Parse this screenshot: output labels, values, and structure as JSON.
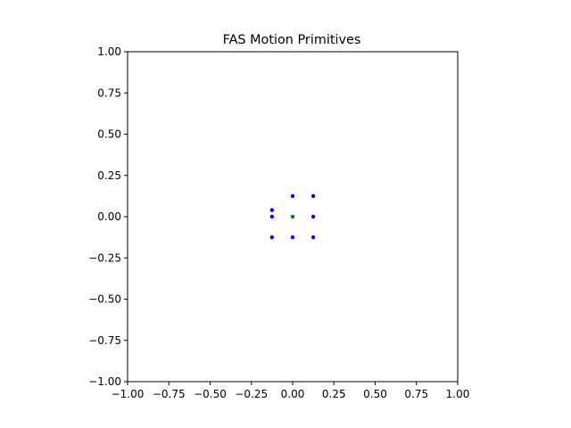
{
  "chart_data": {
    "type": "scatter",
    "title": "FAS Motion Primitives",
    "xlabel": "",
    "ylabel": "",
    "xlim": [
      -1.0,
      1.0
    ],
    "ylim": [
      -1.0,
      1.0
    ],
    "grid": false,
    "x_ticks": [
      -1.0,
      -0.75,
      -0.5,
      -0.25,
      0.0,
      0.25,
      0.5,
      0.75,
      1.0
    ],
    "x_tick_labels": [
      "−1.00",
      "−0.75",
      "−0.50",
      "−0.25",
      "0.00",
      "0.25",
      "0.50",
      "0.75",
      "1.00"
    ],
    "y_ticks": [
      1.0,
      0.75,
      0.5,
      0.25,
      0.0,
      -0.25,
      -0.5,
      -0.75,
      -1.0
    ],
    "y_tick_labels": [
      "1.00",
      "0.75",
      "0.50",
      "0.25",
      "0.00",
      "−0.25",
      "−0.50",
      "−0.75",
      "−1.00"
    ],
    "series": [
      {
        "color": "#0000ff",
        "points": [
          {
            "x": -0.125,
            "y": 0.04
          },
          {
            "x": -0.125,
            "y": 0.0
          },
          {
            "x": -0.125,
            "y": -0.125
          },
          {
            "x": 0.0,
            "y": 0.125
          },
          {
            "x": 0.0,
            "y": -0.125
          },
          {
            "x": 0.125,
            "y": 0.125
          },
          {
            "x": 0.125,
            "y": 0.0
          },
          {
            "x": 0.125,
            "y": -0.125
          }
        ]
      },
      {
        "color": "#008000",
        "points": [
          {
            "x": 0.0,
            "y": 0.0
          }
        ]
      }
    ]
  }
}
